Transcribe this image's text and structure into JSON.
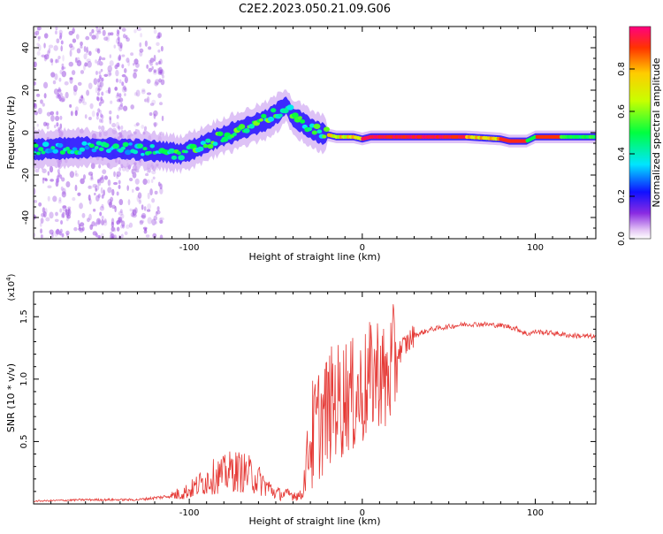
{
  "title": "C2E2.2023.050.21.09.G06",
  "chart_data": [
    {
      "type": "heatmap",
      "xlabel": "Height of straight line (km)",
      "ylabel": "Frequency (Hz)",
      "xlim": [
        -190,
        135
      ],
      "ylim": [
        -50,
        50
      ],
      "xticks": [
        -100,
        0,
        100
      ],
      "yticks": [
        -40,
        -20,
        0,
        20,
        40
      ],
      "colorbar": {
        "label": "Normalized spectral amplitude",
        "range": [
          0,
          1
        ],
        "ticks": [
          0.0,
          0.2,
          0.4,
          0.6,
          0.8
        ]
      },
      "ridge": {
        "x": [
          -190,
          -160,
          -130,
          -115,
          -105,
          -95,
          -85,
          -75,
          -65,
          -55,
          -48,
          -44,
          -40,
          -35,
          -30,
          -25,
          -20,
          -15,
          -10,
          -5,
          0,
          5,
          10,
          30,
          60,
          80,
          85,
          95,
          100,
          110,
          120,
          135
        ],
        "y": [
          -8,
          -7,
          -8,
          -9,
          -10,
          -7,
          -3,
          0,
          3,
          6,
          10,
          13,
          7,
          5,
          2,
          0,
          -1,
          -2,
          -2,
          -2,
          -3,
          -2,
          -2,
          -2,
          -2,
          -3,
          -4,
          -4,
          -2,
          -2,
          -2,
          -2
        ]
      }
    },
    {
      "type": "line",
      "xlabel": "Height of straight line (km)",
      "ylabel": "SNR (10 * v/v)",
      "yscale_label": "(x10^4)",
      "xlim": [
        -190,
        135
      ],
      "ylim": [
        0,
        1.7
      ],
      "xticks": [
        -100,
        0,
        100
      ],
      "yticks": [
        0.5,
        1.0,
        1.5
      ],
      "series": [
        {
          "name": "SNR",
          "color": "#e53935",
          "x": [
            -190,
            -160,
            -130,
            -115,
            -110,
            -100,
            -95,
            -90,
            -85,
            -80,
            -75,
            -70,
            -65,
            -60,
            -55,
            -50,
            -45,
            -40,
            -35,
            -30,
            -25,
            -20,
            -15,
            -12,
            -10,
            -5,
            0,
            5,
            10,
            13,
            20,
            30,
            40,
            50,
            60,
            70,
            80,
            85,
            90,
            95,
            100,
            110,
            120,
            135
          ],
          "y": [
            0.02,
            0.03,
            0.03,
            0.05,
            0.06,
            0.1,
            0.14,
            0.18,
            0.21,
            0.22,
            0.25,
            0.24,
            0.22,
            0.18,
            0.13,
            0.08,
            0.07,
            0.07,
            0.06,
            0.5,
            0.65,
            0.75,
            0.85,
            0.8,
            0.9,
            0.85,
            0.9,
            1.0,
            1.1,
            0.95,
            1.2,
            1.35,
            1.4,
            1.42,
            1.44,
            1.44,
            1.43,
            1.42,
            1.4,
            1.36,
            1.38,
            1.37,
            1.35,
            1.34
          ]
        }
      ]
    }
  ]
}
